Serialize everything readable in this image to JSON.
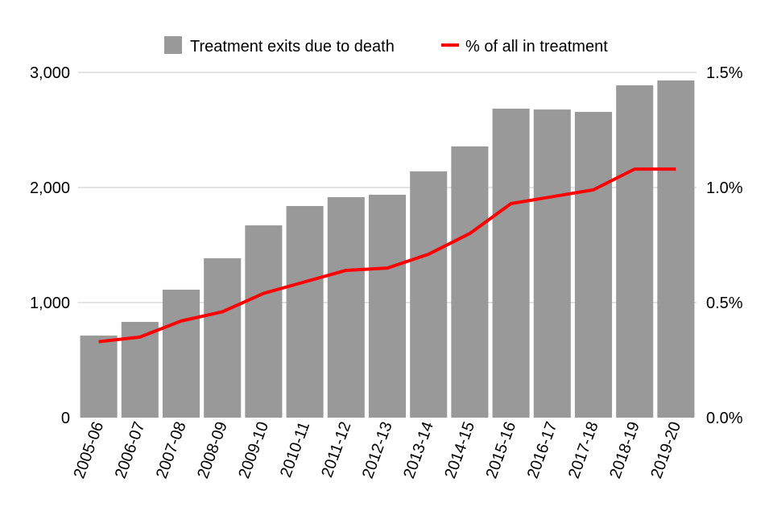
{
  "chart_data": {
    "type": "bar+line",
    "categories": [
      "2005-06",
      "2006-07",
      "2007-08",
      "2008-09",
      "2009-10",
      "2010-11",
      "2011-12",
      "2012-13",
      "2013-14",
      "2014-15",
      "2015-16",
      "2016-17",
      "2017-18",
      "2018-19",
      "2019-20"
    ],
    "series": [
      {
        "name": "Treatment exits due to death",
        "type": "bar",
        "axis": "left",
        "color": "#999999",
        "values": [
          713,
          832,
          1112,
          1385,
          1671,
          1839,
          1916,
          1937,
          2140,
          2357,
          2685,
          2678,
          2657,
          2888,
          2930
        ]
      },
      {
        "name": "% of all in treatment",
        "type": "line",
        "axis": "right",
        "color": "#ff0000",
        "values": [
          0.33,
          0.35,
          0.42,
          0.46,
          0.54,
          0.59,
          0.64,
          0.65,
          0.71,
          0.8,
          0.93,
          0.96,
          0.99,
          1.08,
          1.08
        ]
      }
    ],
    "yleft": {
      "lim": [
        0,
        3000
      ],
      "ticks": [
        0,
        1000,
        2000,
        3000
      ],
      "tick_labels": [
        "0",
        "1,000",
        "2,000",
        "3,000"
      ]
    },
    "yright": {
      "lim": [
        0,
        1.5
      ],
      "ticks": [
        0,
        0.5,
        1.0,
        1.5
      ],
      "tick_labels": [
        "0.0%",
        "0.5%",
        "1.0%",
        "1.5%"
      ]
    },
    "grid": true,
    "legend": "top"
  }
}
